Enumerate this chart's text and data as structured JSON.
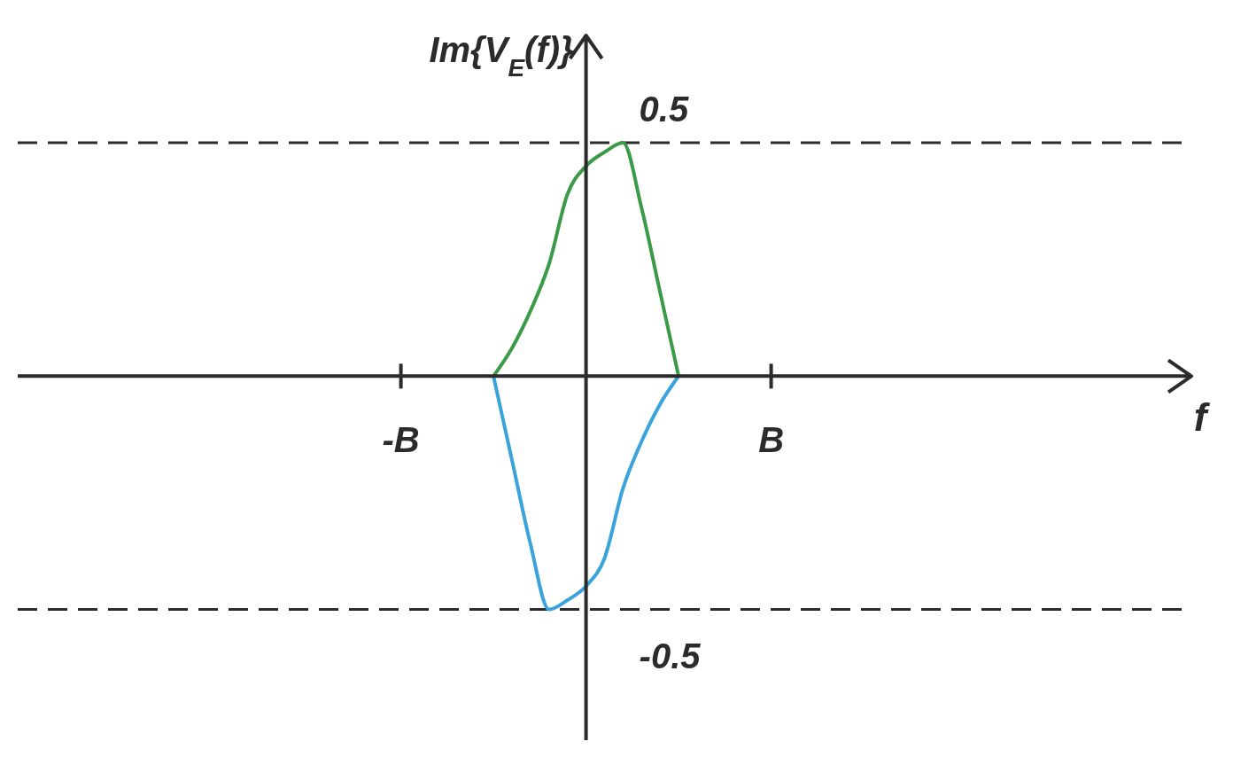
{
  "chart_data": {
    "type": "line",
    "xlabel": "f",
    "ylabel": "Im{V$_{E}$(f)}",
    "categories": [
      null,
      null,
      null,
      null,
      null,
      null,
      null,
      null,
      null,
      null,
      null,
      null,
      null,
      null,
      null,
      null,
      null,
      null,
      null,
      null,
      "-B",
      null,
      null,
      null,
      null,
      null,
      null,
      null,
      null,
      null,
      null,
      null,
      null,
      null,
      null,
      null,
      null,
      null,
      null,
      null,
      "B",
      null,
      null,
      null,
      null,
      null,
      null,
      null,
      null,
      null,
      null,
      null,
      null,
      null,
      null,
      null,
      null,
      null,
      null,
      null,
      null,
      null,
      null
    ],
    "ylim": [
      -0.78,
      0.73
    ],
    "grid": false,
    "legend": false,
    "marker": "none",
    "line_style": "solid",
    "ref_lines": [
      {
        "axis": "y",
        "value": 0.5,
        "label": "0.5",
        "line_style": "dashed",
        "color": "#2b2b2b"
      },
      {
        "axis": "y",
        "value": -0.5,
        "label": "-0.5",
        "line_style": "dashed",
        "color": "#2b2b2b"
      }
    ],
    "series": [
      {
        "color": "#3a9a48",
        "values": [
          null,
          null,
          null,
          null,
          null,
          null,
          null,
          null,
          null,
          null,
          null,
          null,
          null,
          null,
          null,
          null,
          null,
          null,
          null,
          null,
          null,
          null,
          null,
          null,
          null,
          0,
          0.06,
          0.14,
          0.24,
          0.39,
          0.45,
          0.48,
          0.5,
          0.36,
          0.18,
          0,
          null,
          null,
          null,
          null,
          null,
          null,
          null,
          null,
          null,
          null,
          null,
          null,
          null,
          null,
          null,
          null,
          null,
          null,
          null,
          null,
          null,
          null,
          null,
          null,
          null,
          null,
          null
        ]
      },
      {
        "color": "#3ba3dc",
        "values": [
          null,
          null,
          null,
          null,
          null,
          null,
          null,
          null,
          null,
          null,
          null,
          null,
          null,
          null,
          null,
          null,
          null,
          null,
          null,
          null,
          null,
          null,
          null,
          null,
          null,
          0,
          -0.18,
          -0.36,
          -0.5,
          -0.48,
          -0.45,
          -0.39,
          -0.24,
          -0.14,
          -0.06,
          0,
          null,
          null,
          null,
          null,
          null,
          null,
          null,
          null,
          null,
          null,
          null,
          null,
          null,
          null,
          null,
          null,
          null,
          null,
          null,
          null,
          null,
          null,
          null,
          null,
          null,
          null,
          null
        ]
      }
    ]
  }
}
